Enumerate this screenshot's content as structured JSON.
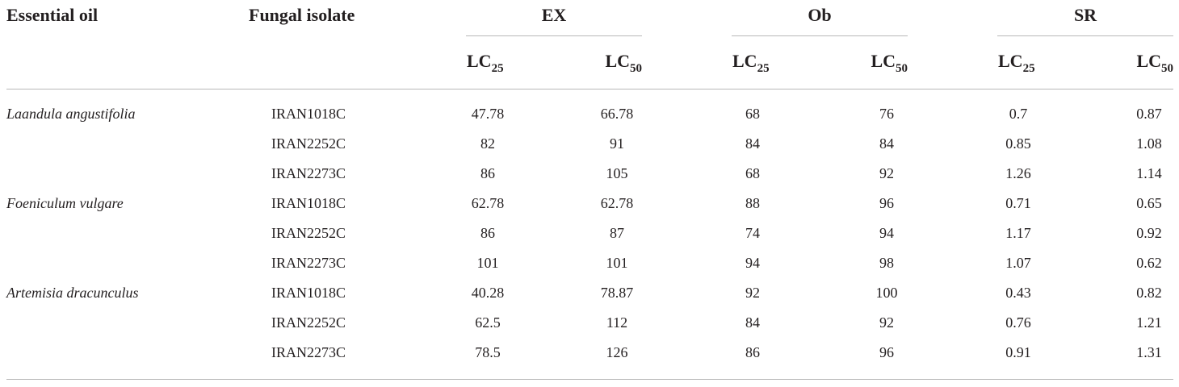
{
  "headers": {
    "essential_oil": "Essential oil",
    "fungal_isolate": "Fungal isolate",
    "groups": [
      "EX",
      "Ob",
      "SR"
    ],
    "sub": [
      {
        "base": "LC",
        "index": "25"
      },
      {
        "base": "LC",
        "index": "50"
      }
    ]
  },
  "rows": [
    {
      "oil": "Laandula angustifolia",
      "isolate": "IRAN1018C",
      "values": [
        "47.78",
        "66.78",
        "68",
        "76",
        "0.7",
        "0.87"
      ]
    },
    {
      "oil": "",
      "isolate": "IRAN2252C",
      "values": [
        "82",
        "91",
        "84",
        "84",
        "0.85",
        "1.08"
      ]
    },
    {
      "oil": "",
      "isolate": "IRAN2273C",
      "values": [
        "86",
        "105",
        "68",
        "92",
        "1.26",
        "1.14"
      ]
    },
    {
      "oil": "Foeniculum vulgare",
      "isolate": "IRAN1018C",
      "values": [
        "62.78",
        "62.78",
        "88",
        "96",
        "0.71",
        "0.65"
      ]
    },
    {
      "oil": "",
      "isolate": "IRAN2252C",
      "values": [
        "86",
        "87",
        "74",
        "94",
        "1.17",
        "0.92"
      ]
    },
    {
      "oil": "",
      "isolate": "IRAN2273C",
      "values": [
        "101",
        "101",
        "94",
        "98",
        "1.07",
        "0.62"
      ]
    },
    {
      "oil": "Artemisia dracunculus",
      "isolate": "IRAN1018C",
      "values": [
        "40.28",
        "78.87",
        "92",
        "100",
        "0.43",
        "0.82"
      ]
    },
    {
      "oil": "",
      "isolate": "IRAN2252C",
      "values": [
        "62.5",
        "112",
        "84",
        "92",
        "0.76",
        "1.21"
      ]
    },
    {
      "oil": "",
      "isolate": "IRAN2273C",
      "values": [
        "78.5",
        "126",
        "86",
        "96",
        "0.91",
        "1.31"
      ]
    }
  ]
}
